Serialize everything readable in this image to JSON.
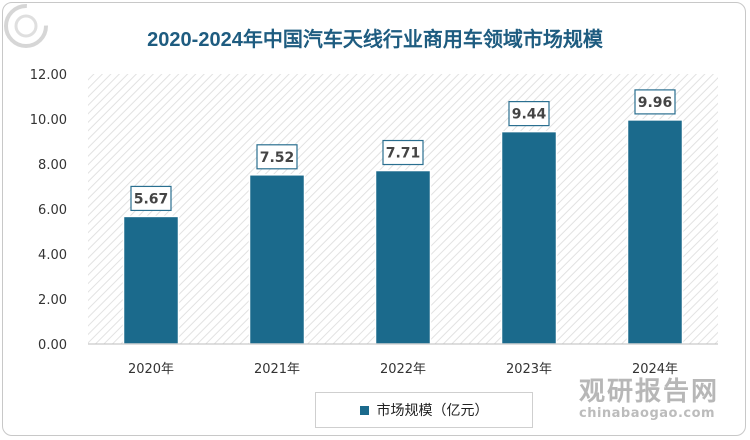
{
  "chart_data": {
    "type": "bar",
    "title": "2020-2024年中国汽车天线行业商用车领域市场规模",
    "categories": [
      "2020年",
      "2021年",
      "2022年",
      "2023年",
      "2024年"
    ],
    "series": [
      {
        "name": "市场规模（亿元）",
        "values": [
          5.67,
          7.52,
          7.71,
          9.44,
          9.96
        ]
      }
    ],
    "data_labels": [
      "5.67",
      "7.52",
      "7.71",
      "9.44",
      "9.96"
    ],
    "y_ticks": [
      "0.00",
      "2.00",
      "4.00",
      "6.00",
      "8.00",
      "10.00",
      "12.00"
    ],
    "ylim": [
      0,
      12
    ],
    "xlabel": "",
    "ylabel": "",
    "legend_position": "bottom",
    "grid": false,
    "colors": {
      "bar": "#1b6a8c",
      "title": "#1e5c80"
    }
  },
  "watermark": {
    "cn": "观研报告网",
    "en": "chinabaogao.com"
  }
}
